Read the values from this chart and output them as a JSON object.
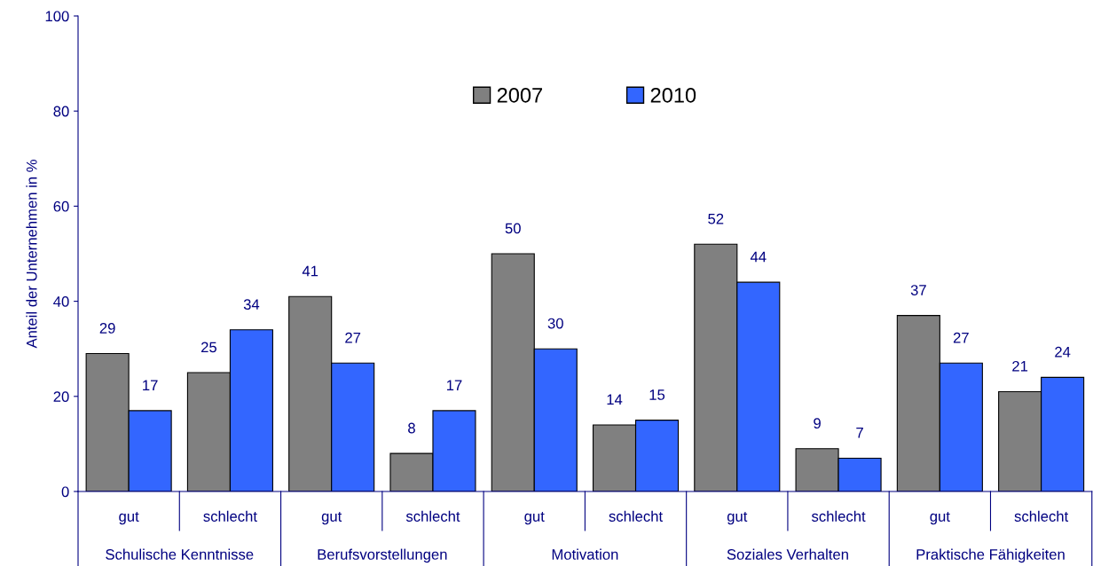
{
  "chart_data": {
    "type": "bar",
    "ylabel": "Anteil der Unternehmen in %",
    "categories": [
      "gut",
      "schlecht",
      "gut",
      "schlecht",
      "gut",
      "schlecht",
      "gut",
      "schlecht",
      "gut",
      "schlecht"
    ],
    "series": [
      {
        "name": "2007",
        "color": "#808080",
        "values": [
          29,
          25,
          41,
          8,
          50,
          14,
          52,
          9,
          37,
          21
        ]
      },
      {
        "name": "2010",
        "color": "#3366ff",
        "values": [
          17,
          34,
          27,
          17,
          30,
          15,
          44,
          7,
          27,
          24
        ]
      }
    ],
    "annotations": [
      "Schulische Kenntnisse",
      "Berufsvorstellungen",
      "Motivation",
      "Soziales Verhalten",
      "Praktische Fähigkeiten"
    ],
    "ylim": [
      0,
      100
    ],
    "yticks": [
      0,
      20,
      40,
      60,
      80,
      100
    ],
    "data_labels": true,
    "grid": false,
    "legend": "top"
  }
}
